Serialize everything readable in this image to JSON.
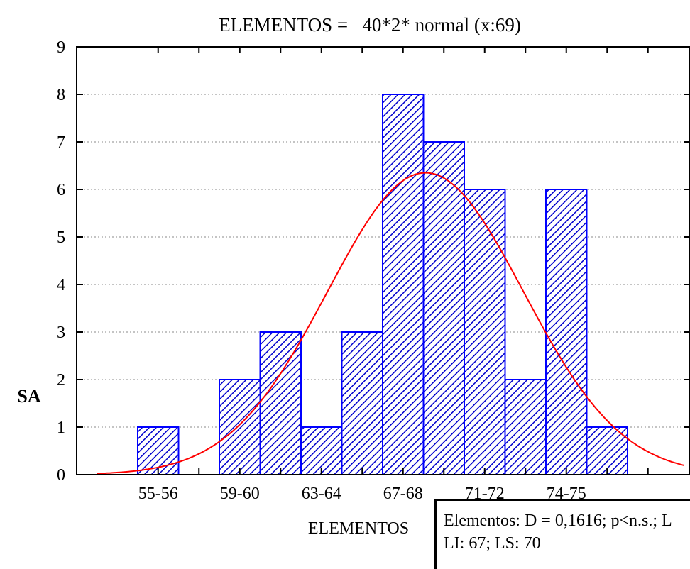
{
  "chart_data": {
    "type": "histogram",
    "title": "ELEMENTOS =   40*2* normal (x:69)",
    "xlabel": "ELEMENTOS",
    "ylabel": "SA",
    "ylim": [
      0,
      9
    ],
    "yticks": [
      "0",
      "1",
      "2",
      "3",
      "4",
      "5",
      "6",
      "7",
      "8",
      "9"
    ],
    "grid": "horizontal dotted",
    "bins": [
      {
        "label": "55-56",
        "value": 1
      },
      {
        "label": "",
        "value": 0
      },
      {
        "label": "59-60",
        "value": 2
      },
      {
        "label": "",
        "value": 3
      },
      {
        "label": "63-64",
        "value": 1
      },
      {
        "label": "",
        "value": 3
      },
      {
        "label": "67-68",
        "value": 8
      },
      {
        "label": "",
        "value": 7
      },
      {
        "label": "71-72",
        "value": 6
      },
      {
        "label": "",
        "value": 2
      },
      {
        "label": "74-75",
        "value": 6
      },
      {
        "label": "",
        "value": 1
      }
    ],
    "fit_curve": {
      "type": "normal",
      "peak": 6.35,
      "peak_position_bins": 7.05,
      "sd_bins": 2.4
    },
    "stats_box": {
      "line1": "Elementos: D = 0,1616; p<n.s.; L",
      "line2": "LI: 67; LS: 70"
    },
    "colors": {
      "bar_fill": "#ffffff",
      "bar_hatch": "#0000cc",
      "bar_border": "#0000ff",
      "curve": "#ff0000",
      "grid": "#888888",
      "axis": "#000000"
    }
  }
}
